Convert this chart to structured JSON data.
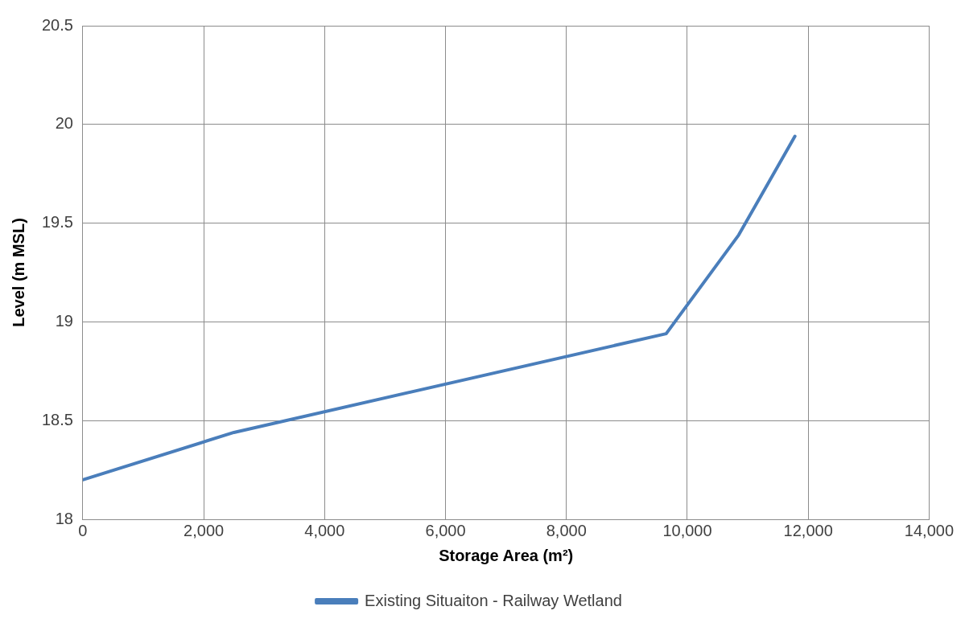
{
  "chart_data": {
    "type": "line",
    "xlabel": "Storage Area (m²)",
    "ylabel": "Level (m MSL)",
    "x": [
      0,
      2500,
      9650,
      10850,
      11780
    ],
    "series": [
      {
        "name": "Existing Situaiton - Railway Wetland",
        "color": "#4a7ebb",
        "values": [
          18.2,
          18.44,
          18.94,
          19.44,
          19.94
        ]
      }
    ],
    "xlim": [
      0,
      14000
    ],
    "xticks": [
      {
        "value": 0,
        "label": "0"
      },
      {
        "value": 2000,
        "label": "2,000"
      },
      {
        "value": 4000,
        "label": "4,000"
      },
      {
        "value": 6000,
        "label": "6,000"
      },
      {
        "value": 8000,
        "label": "8,000"
      },
      {
        "value": 10000,
        "label": "10,000"
      },
      {
        "value": 12000,
        "label": "12,000"
      },
      {
        "value": 14000,
        "label": "14,000"
      }
    ],
    "ylim": [
      18,
      20.5
    ],
    "yticks": [
      18,
      18.5,
      19,
      19.5,
      20,
      20.5
    ],
    "grid": true,
    "legend": "bottom",
    "marker": "none",
    "line_style": "solid"
  }
}
